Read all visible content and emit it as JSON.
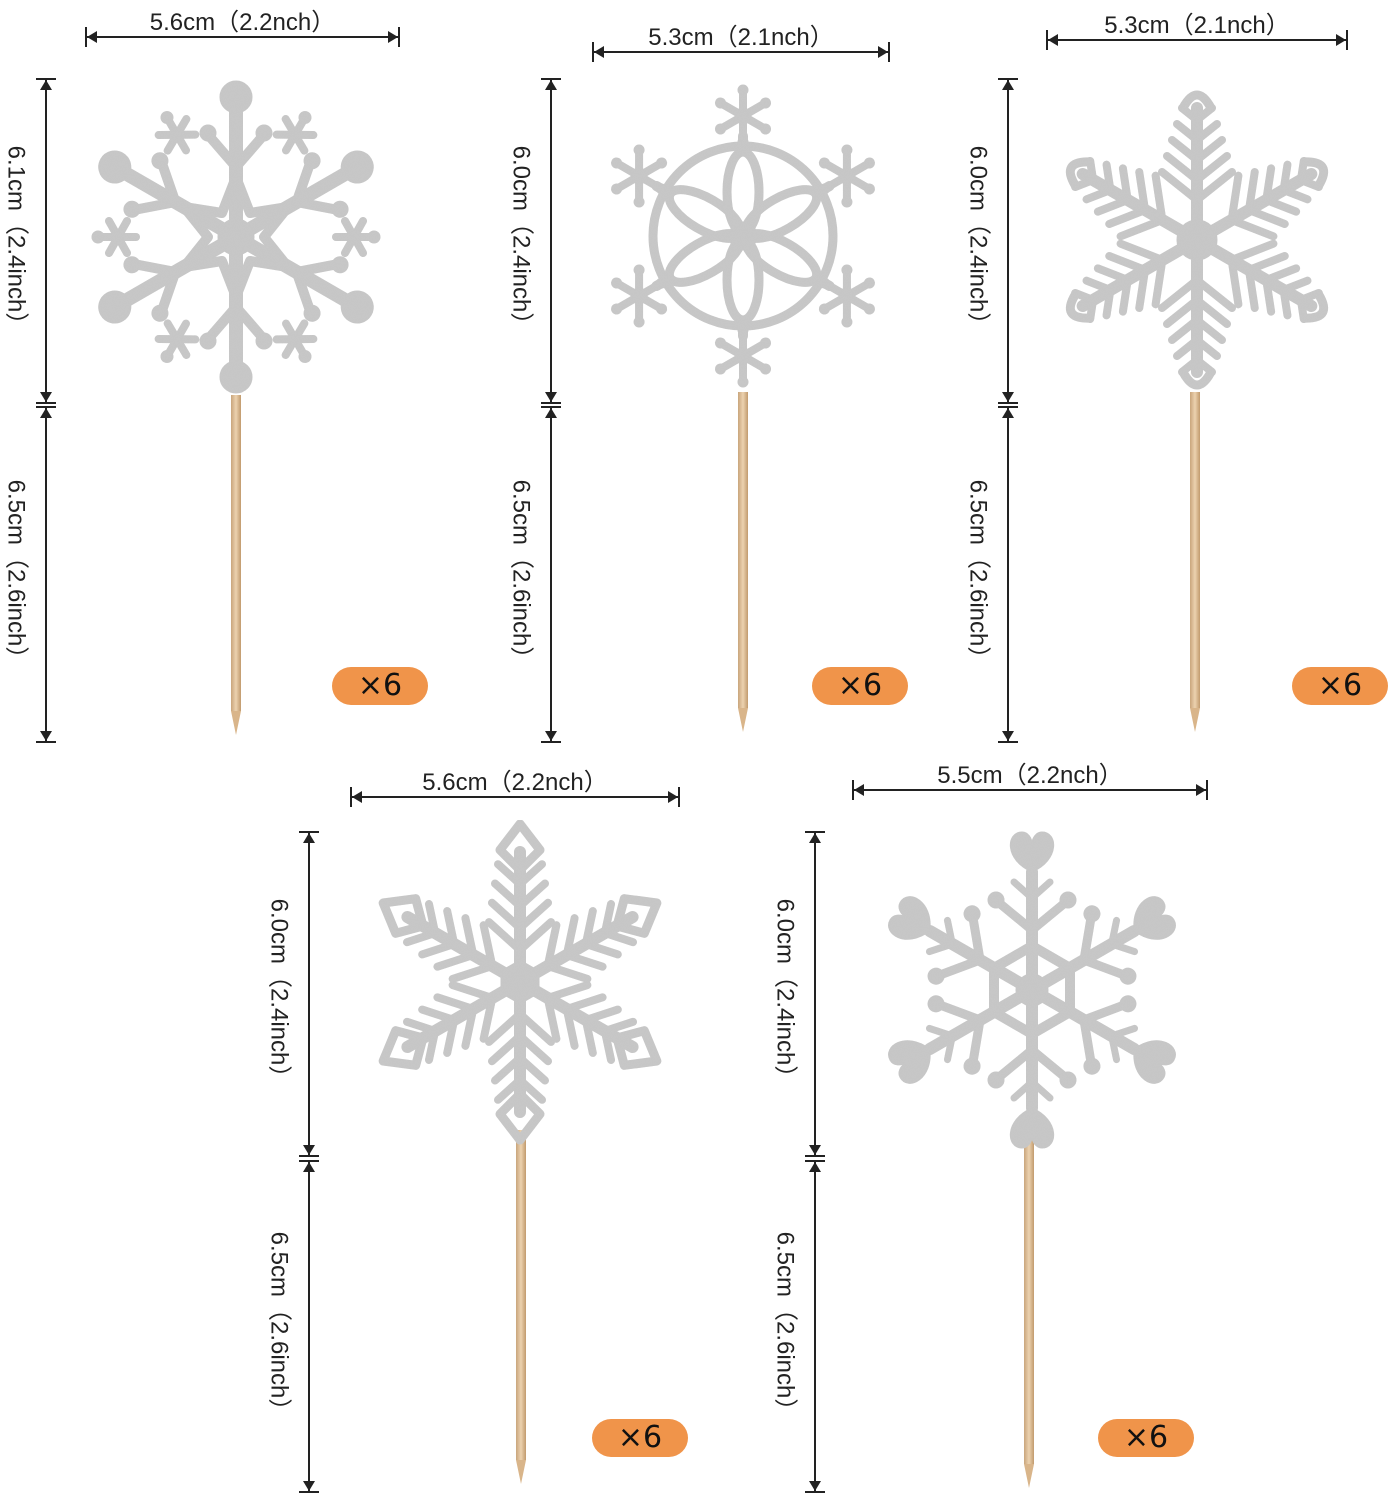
{
  "toppers": [
    {
      "width_label": "5.6cm（2.2nch）",
      "top_height_label": "6.1cm（2.4inch）",
      "stick_height_label": "6.5cm（2.6inch）",
      "quantity_label": "×6",
      "style": "round-tip"
    },
    {
      "width_label": "5.3cm（2.1nch）",
      "top_height_label": "6.0cm（2.4inch）",
      "stick_height_label": "6.5cm（2.6inch）",
      "quantity_label": "×6",
      "style": "flower"
    },
    {
      "width_label": "5.3cm（2.1nch）",
      "top_height_label": "6.0cm（2.4inch）",
      "stick_height_label": "6.5cm（2.6inch）",
      "quantity_label": "×6",
      "style": "fern"
    },
    {
      "width_label": "5.6cm（2.2nch）",
      "top_height_label": "6.0cm（2.4inch）",
      "stick_height_label": "6.5cm（2.6inch）",
      "quantity_label": "×6",
      "style": "arrow"
    },
    {
      "width_label": "5.5cm（2.2nch）",
      "top_height_label": "6.0cm（2.4inch）",
      "stick_height_label": "6.5cm（2.6inch）",
      "quantity_label": "×6",
      "style": "heart"
    }
  ],
  "colors": {
    "glitter": "#c8c8c8",
    "glitter_dark": "#9a9a9a",
    "badge": "#f0944a",
    "stick": "#dcb88d",
    "dimension_line": "#222222"
  }
}
